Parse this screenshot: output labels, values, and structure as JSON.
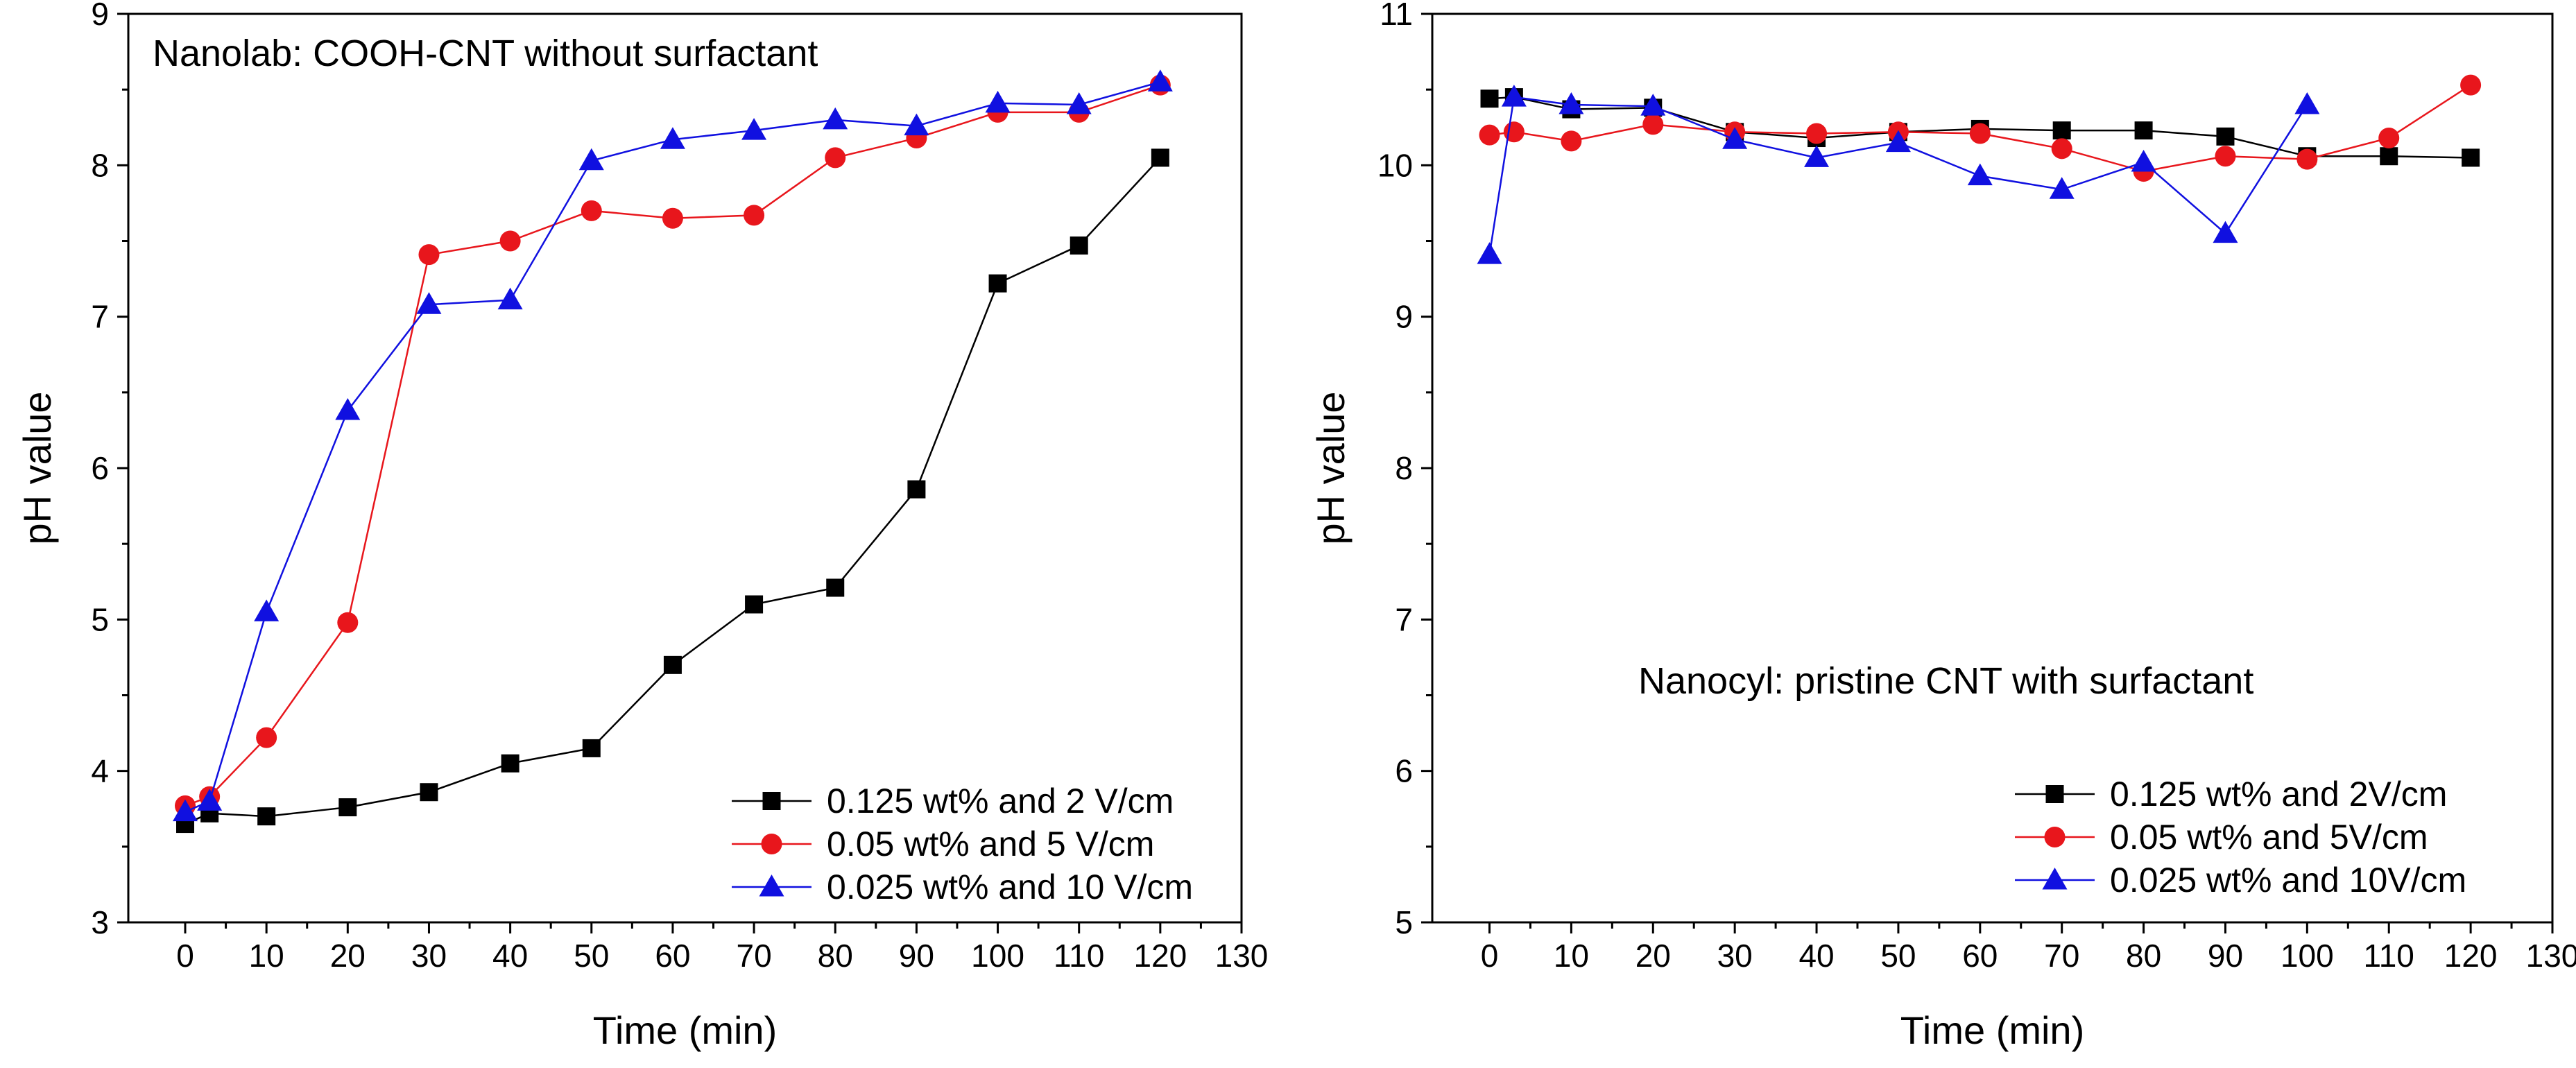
{
  "chart_data": [
    {
      "type": "line",
      "annotation": "Nanolab: COOH-CNT without surfactant",
      "xlabel": "Time (min)",
      "ylabel": "pH value",
      "xlim": [
        -7,
        130
      ],
      "ylim": [
        3,
        9
      ],
      "xticks": [
        0,
        10,
        20,
        30,
        40,
        50,
        60,
        70,
        80,
        90,
        100,
        110,
        120,
        130
      ],
      "yticks": [
        3,
        4,
        5,
        6,
        7,
        8,
        9
      ],
      "legend_position": "bottom-right",
      "series": [
        {
          "name": "0.125 wt% and 2 V/cm",
          "color": "#000000",
          "marker": "square",
          "x": [
            0,
            3,
            10,
            20,
            30,
            40,
            50,
            60,
            70,
            80,
            90,
            100,
            110,
            120
          ],
          "y": [
            3.65,
            3.72,
            3.7,
            3.76,
            3.86,
            4.05,
            4.15,
            4.7,
            5.1,
            5.21,
            5.86,
            7.22,
            7.47,
            8.05
          ]
        },
        {
          "name": "0.05 wt% and 5 V/cm",
          "color": "#e8161c",
          "marker": "circle",
          "x": [
            0,
            3,
            10,
            20,
            30,
            40,
            50,
            60,
            70,
            80,
            90,
            100,
            110,
            120
          ],
          "y": [
            3.77,
            3.83,
            4.22,
            4.98,
            7.41,
            7.5,
            7.7,
            7.65,
            7.67,
            8.05,
            8.18,
            8.35,
            8.35,
            8.53
          ]
        },
        {
          "name": "0.025 wt% and 10 V/cm",
          "color": "#1010e0",
          "marker": "triangle",
          "x": [
            0,
            3,
            10,
            20,
            30,
            40,
            50,
            60,
            70,
            80,
            90,
            100,
            110,
            120
          ],
          "y": [
            3.73,
            3.8,
            5.05,
            6.38,
            7.08,
            7.11,
            8.03,
            8.17,
            8.23,
            8.3,
            8.26,
            8.41,
            8.4,
            8.55
          ]
        }
      ]
    },
    {
      "type": "line",
      "annotation": "Nanocyl: pristine CNT with surfactant",
      "xlabel": "Time (min)",
      "ylabel": "pH value",
      "xlim": [
        -7,
        130
      ],
      "ylim": [
        5,
        11
      ],
      "xticks": [
        0,
        10,
        20,
        30,
        40,
        50,
        60,
        70,
        80,
        90,
        100,
        110,
        120,
        130
      ],
      "yticks": [
        5,
        6,
        7,
        8,
        9,
        10,
        11
      ],
      "legend_position": "bottom-right",
      "series": [
        {
          "name": "0.125 wt% and 2V/cm",
          "color": "#000000",
          "marker": "square",
          "x": [
            0,
            3,
            10,
            20,
            30,
            40,
            50,
            60,
            70,
            80,
            90,
            100,
            110,
            120
          ],
          "y": [
            10.44,
            10.45,
            10.37,
            10.38,
            10.22,
            10.18,
            10.22,
            10.24,
            10.23,
            10.23,
            10.19,
            10.06,
            10.06,
            10.05
          ]
        },
        {
          "name": "0.05 wt% and 5V/cm",
          "color": "#e8161c",
          "marker": "circle",
          "x": [
            0,
            3,
            10,
            20,
            30,
            40,
            50,
            60,
            70,
            80,
            90,
            100,
            110,
            120
          ],
          "y": [
            10.2,
            10.22,
            10.16,
            10.27,
            10.22,
            10.21,
            10.22,
            10.21,
            10.11,
            9.96,
            10.06,
            10.04,
            10.18,
            10.53
          ]
        },
        {
          "name": "0.025 wt% and 10V/cm",
          "color": "#1010e0",
          "marker": "triangle",
          "x": [
            0,
            3,
            10,
            20,
            30,
            40,
            50,
            60,
            70,
            80,
            90,
            100,
            110,
            120
          ],
          "y": [
            9.41,
            10.45,
            10.4,
            10.39,
            10.17,
            10.05,
            10.15,
            9.93,
            9.84,
            10.02,
            9.55,
            10.4,
            null,
            null
          ]
        }
      ]
    }
  ]
}
